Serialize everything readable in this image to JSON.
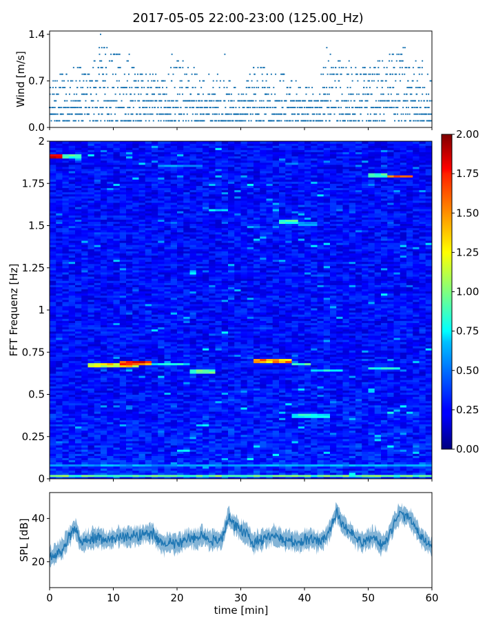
{
  "title": "2017-05-05 22:00-23:00 (125.00_Hz)",
  "colors": {
    "wind_marker": "#1f77b4",
    "spl_line": "#1f77b4",
    "colormap": "jet"
  },
  "chart_data": [
    {
      "id": "wind",
      "type": "scatter",
      "ylabel": "Wind [m/s]",
      "xlim": [
        0,
        60
      ],
      "ylim": [
        0,
        1.45
      ],
      "yticks": [
        "0.0",
        "0.7",
        "1.4"
      ],
      "ytick_values": [
        0,
        0.7,
        1.4
      ],
      "xticks_visible": false,
      "marker": "dot",
      "value_levels": [
        0.1,
        0.2,
        0.3,
        0.4,
        0.5,
        0.6,
        0.7,
        0.8,
        0.9,
        1.0,
        1.1,
        1.2,
        1.4
      ],
      "series_profile": {
        "x_min": [
          0,
          2,
          4,
          6,
          8,
          10,
          12,
          14,
          16,
          18,
          20,
          22,
          24,
          26,
          28,
          30,
          32,
          34,
          36,
          38,
          40,
          42,
          44,
          46,
          48,
          50,
          52,
          54,
          56,
          58,
          60
        ],
        "typical_max_mps": [
          0.6,
          0.8,
          0.9,
          0.8,
          1.2,
          1.1,
          1.0,
          0.8,
          0.8,
          0.7,
          1.0,
          0.9,
          0.8,
          0.8,
          0.7,
          0.5,
          0.9,
          0.9,
          0.8,
          0.7,
          0.6,
          0.6,
          1.1,
          1.0,
          0.9,
          0.9,
          1.0,
          1.1,
          1.2,
          0.9,
          0.7
        ],
        "peak_points": [
          [
            8,
            1.4
          ],
          [
            8.2,
            1.2
          ],
          [
            12.5,
            1.1
          ],
          [
            19.2,
            1.1
          ],
          [
            27.5,
            1.1
          ],
          [
            43.5,
            1.2
          ],
          [
            55.5,
            1.2
          ],
          [
            58.5,
            1.0
          ]
        ]
      },
      "sample_interval_s": 2
    },
    {
      "id": "spectrogram",
      "type": "heatmap",
      "ylabel": "FFT Frequenz [Hz]",
      "xlim": [
        0,
        60
      ],
      "ylim": [
        0,
        2
      ],
      "yticks": [
        "0",
        "0.25",
        "0.5",
        "0.75",
        "1",
        "1.25",
        "1.5",
        "1.75",
        "2"
      ],
      "ytick_values": [
        0,
        0.25,
        0.5,
        0.75,
        1,
        1.25,
        1.5,
        1.75,
        2
      ],
      "xticks_visible": false,
      "colorbar": {
        "range": [
          0,
          2
        ],
        "ticks": [
          "0.00",
          "0.25",
          "0.50",
          "0.75",
          "1.00",
          "1.25",
          "1.50",
          "1.75",
          "2.00"
        ],
        "tick_values": [
          0,
          0.25,
          0.5,
          0.75,
          1.0,
          1.25,
          1.5,
          1.75,
          2.0
        ]
      },
      "background_level": 0.25,
      "features": [
        {
          "t0": 0,
          "t1": 2,
          "f": 1.91,
          "v": 1.9
        },
        {
          "t0": 2,
          "t1": 5,
          "f": 1.91,
          "v": 0.9
        },
        {
          "t0": 6,
          "t1": 14,
          "f": 0.675,
          "v": 1.3
        },
        {
          "t0": 11,
          "t1": 16,
          "f": 0.69,
          "v": 1.7
        },
        {
          "t0": 16,
          "t1": 22,
          "f": 0.68,
          "v": 0.8
        },
        {
          "t0": 22,
          "t1": 26,
          "f": 0.64,
          "v": 1.0
        },
        {
          "t0": 32,
          "t1": 38,
          "f": 0.7,
          "v": 1.5
        },
        {
          "t0": 38,
          "t1": 41,
          "f": 0.68,
          "v": 0.9
        },
        {
          "t0": 41,
          "t1": 46,
          "f": 0.645,
          "v": 0.8
        },
        {
          "t0": 50,
          "t1": 55,
          "f": 0.655,
          "v": 0.8
        },
        {
          "t0": 36.5,
          "t1": 39,
          "f": 1.525,
          "v": 0.9
        },
        {
          "t0": 39,
          "t1": 42,
          "f": 1.51,
          "v": 0.6
        },
        {
          "t0": 25,
          "t1": 28,
          "f": 1.595,
          "v": 0.8
        },
        {
          "t0": 17,
          "t1": 24,
          "f": 1.855,
          "v": 0.6
        },
        {
          "t0": 50,
          "t1": 53,
          "f": 1.8,
          "v": 0.9
        },
        {
          "t0": 53,
          "t1": 57,
          "f": 1.795,
          "v": 1.8
        },
        {
          "t0": 38,
          "t1": 44,
          "f": 0.375,
          "v": 0.8
        },
        {
          "t0": 0,
          "t1": 60,
          "f": 0.02,
          "v": 1.0
        },
        {
          "t0": 0,
          "t1": 60,
          "f": 0.08,
          "v": 0.6
        }
      ]
    },
    {
      "id": "spl",
      "type": "line",
      "ylabel": "SPL [dB]",
      "xlabel": "time [min]",
      "xlim": [
        0,
        60
      ],
      "ylim": [
        8,
        52
      ],
      "yticks": [
        "20",
        "40"
      ],
      "ytick_values": [
        20,
        40
      ],
      "xticks": [
        "0",
        "10",
        "20",
        "30",
        "40",
        "50",
        "60"
      ],
      "xtick_values": [
        0,
        10,
        20,
        30,
        40,
        50,
        60
      ],
      "x": [
        0,
        1,
        2,
        3,
        4,
        5,
        6,
        7,
        8,
        9,
        10,
        11,
        12,
        13,
        14,
        15,
        16,
        17,
        18,
        19,
        20,
        21,
        22,
        23,
        24,
        25,
        26,
        27,
        28,
        29,
        30,
        31,
        32,
        33,
        34,
        35,
        36,
        37,
        38,
        39,
        40,
        41,
        42,
        43,
        44,
        45,
        46,
        47,
        48,
        49,
        50,
        51,
        52,
        53,
        54,
        55,
        56,
        57,
        58,
        59,
        60
      ],
      "values": [
        22,
        24,
        26,
        31,
        36,
        28,
        30,
        31,
        31,
        30,
        31,
        32,
        31,
        32,
        32,
        33,
        34,
        30,
        28,
        29,
        28,
        29,
        31,
        30,
        32,
        30,
        31,
        29,
        41,
        37,
        34,
        33,
        29,
        30,
        31,
        32,
        31,
        30,
        30,
        29,
        30,
        31,
        29,
        30,
        35,
        43,
        37,
        34,
        31,
        29,
        30,
        32,
        28,
        30,
        38,
        42,
        41,
        38,
        33,
        29,
        27
      ],
      "spread_db": 4
    }
  ]
}
